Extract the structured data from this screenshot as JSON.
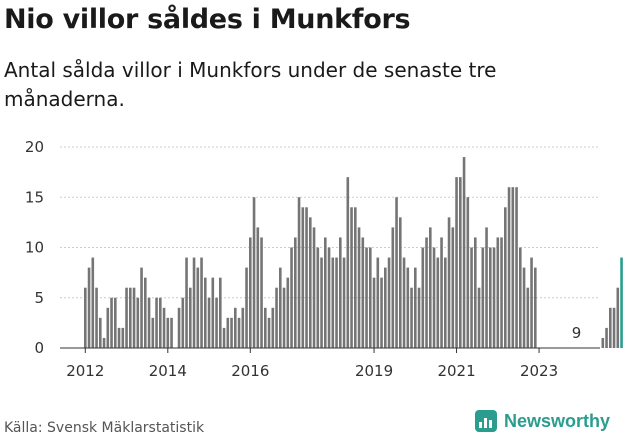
{
  "title": "Nio villor såldes i Munkfors",
  "subtitle": "Antal sålda villor i Munkfors under de senaste tre månaderna.",
  "source": "Källa: Svensk Mäklarstatistik",
  "brand": "Newsworthy",
  "colors": {
    "bar": "#757575",
    "highlight": "#2a9d8f",
    "grid": "#cccccc",
    "axis": "#333333"
  },
  "chart_data": {
    "type": "bar",
    "title": "Nio villor såldes i Munkfors",
    "subtitle": "Antal sålda villor i Munkfors under de senaste tre månaderna.",
    "xlabel": "",
    "ylabel": "",
    "ylim": [
      0,
      20
    ],
    "yticks": [
      0,
      5,
      10,
      15,
      20
    ],
    "xticks": [
      {
        "label": "2012",
        "index": 0
      },
      {
        "label": "2014",
        "index": 22
      },
      {
        "label": "2016",
        "index": 44
      },
      {
        "label": "2019",
        "index": 77
      },
      {
        "label": "2021",
        "index": 99
      },
      {
        "label": "2023",
        "index": 121
      }
    ],
    "grid": true,
    "annotation": {
      "text": "9",
      "index": 131
    },
    "values": [
      6,
      8,
      9,
      6,
      3,
      1,
      4,
      5,
      5,
      2,
      2,
      6,
      6,
      6,
      5,
      8,
      7,
      5,
      3,
      5,
      5,
      4,
      3,
      3,
      0,
      4,
      5,
      9,
      6,
      9,
      8,
      9,
      7,
      5,
      7,
      5,
      7,
      2,
      3,
      3,
      4,
      3,
      4,
      8,
      11,
      15,
      12,
      11,
      4,
      3,
      4,
      6,
      8,
      6,
      7,
      10,
      11,
      15,
      14,
      14,
      13,
      12,
      10,
      9,
      11,
      10,
      9,
      9,
      11,
      9,
      17,
      14,
      14,
      12,
      11,
      10,
      10,
      7,
      9,
      7,
      8,
      9,
      12,
      15,
      13,
      9,
      8,
      6,
      8,
      6,
      10,
      11,
      12,
      10,
      9,
      11,
      9,
      13,
      12,
      17,
      17,
      19,
      15,
      10,
      11,
      6,
      10,
      12,
      10,
      10,
      11,
      11,
      14,
      16,
      16,
      16,
      10,
      8,
      6,
      9,
      8,
      0,
      0,
      0,
      0,
      0,
      0,
      0,
      0,
      0,
      0,
      0,
      0,
      0,
      0,
      0,
      0,
      0,
      1,
      2,
      4,
      4,
      6,
      9
    ],
    "highlight_last": true
  }
}
